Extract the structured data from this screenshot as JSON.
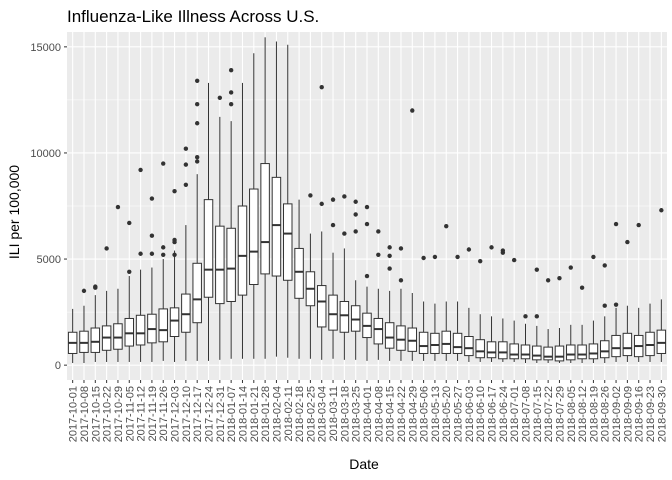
{
  "chart_data": {
    "type": "boxplot",
    "title": "Influenza-Like Illness Across U.S.",
    "xlabel": "Date",
    "ylabel": "ILI per 100,000",
    "ylim": [
      -700,
      15700
    ],
    "yticks": [
      0,
      5000,
      10000,
      15000
    ],
    "ytick_labels": [
      "0",
      "5000",
      "10000",
      "15000"
    ],
    "grid": true,
    "colors": {
      "panel": "#ebebeb",
      "grid": "#ffffff",
      "box_fill": "#ffffff",
      "box_line": "#333333"
    },
    "categories": [
      "2017-10-01",
      "2017-10-08",
      "2017-10-15",
      "2017-10-22",
      "2017-10-29",
      "2017-11-05",
      "2017-11-12",
      "2017-11-19",
      "2017-11-26",
      "2017-12-03",
      "2017-12-10",
      "2017-12-17",
      "2017-12-24",
      "2017-12-31",
      "2018-01-07",
      "2018-01-14",
      "2018-01-21",
      "2018-01-28",
      "2018-02-04",
      "2018-02-11",
      "2018-02-18",
      "2018-02-25",
      "2018-03-04",
      "2018-03-11",
      "2018-03-18",
      "2018-03-25",
      "2018-04-01",
      "2018-04-08",
      "2018-04-15",
      "2018-04-22",
      "2018-04-29",
      "2018-05-06",
      "2018-05-13",
      "2018-05-20",
      "2018-05-27",
      "2018-06-03",
      "2018-06-10",
      "2018-06-17",
      "2018-06-24",
      "2018-07-01",
      "2018-07-08",
      "2018-07-15",
      "2018-07-22",
      "2018-07-29",
      "2018-08-05",
      "2018-08-12",
      "2018-08-19",
      "2018-08-26",
      "2018-09-02",
      "2018-09-09",
      "2018-09-16",
      "2018-09-23",
      "2018-09-30"
    ],
    "boxes": [
      {
        "low": 100,
        "q1": 550,
        "median": 1050,
        "q3": 1550,
        "high": 2650,
        "outliers": []
      },
      {
        "low": 100,
        "q1": 600,
        "median": 1050,
        "q3": 1600,
        "high": 2800,
        "outliers": [
          3500
        ]
      },
      {
        "low": 150,
        "q1": 600,
        "median": 1100,
        "q3": 1750,
        "high": 3300,
        "outliers": [
          3650,
          3700
        ]
      },
      {
        "low": 150,
        "q1": 700,
        "median": 1300,
        "q3": 1850,
        "high": 3500,
        "outliers": [
          5500
        ]
      },
      {
        "low": 150,
        "q1": 750,
        "median": 1300,
        "q3": 1950,
        "high": 3600,
        "outliers": [
          7450
        ]
      },
      {
        "low": 150,
        "q1": 900,
        "median": 1500,
        "q3": 2200,
        "high": 4200,
        "outliers": [
          4400,
          6700
        ]
      },
      {
        "low": 150,
        "q1": 950,
        "median": 1500,
        "q3": 2350,
        "high": 4500,
        "outliers": [
          9200,
          5250
        ]
      },
      {
        "low": 150,
        "q1": 1050,
        "median": 1700,
        "q3": 2400,
        "high": 4600,
        "outliers": [
          7850,
          6100,
          5250
        ]
      },
      {
        "low": 200,
        "q1": 1100,
        "median": 1650,
        "q3": 2650,
        "high": 5000,
        "outliers": [
          9500,
          5550,
          5200
        ]
      },
      {
        "low": 150,
        "q1": 1350,
        "median": 2100,
        "q3": 2700,
        "high": 5400,
        "outliers": [
          8200,
          5900,
          5800,
          5200
        ]
      },
      {
        "low": 200,
        "q1": 1550,
        "median": 2400,
        "q3": 3350,
        "high": 6600,
        "outliers": [
          10200,
          9450,
          8500
        ]
      },
      {
        "low": 200,
        "q1": 2000,
        "median": 3100,
        "q3": 4800,
        "high": 9000,
        "outliers": [
          13400,
          12300,
          11400,
          9800,
          9600
        ]
      },
      {
        "low": 200,
        "q1": 3200,
        "median": 4500,
        "q3": 7800,
        "high": 13300,
        "outliers": []
      },
      {
        "low": 250,
        "q1": 2900,
        "median": 4500,
        "q3": 6550,
        "high": 11700,
        "outliers": [
          12600
        ]
      },
      {
        "low": 300,
        "q1": 3000,
        "median": 4550,
        "q3": 6450,
        "high": 11500,
        "outliers": [
          13900,
          12850,
          12300
        ]
      },
      {
        "low": 300,
        "q1": 3300,
        "median": 5150,
        "q3": 7500,
        "high": 13300,
        "outliers": []
      },
      {
        "low": 300,
        "q1": 3800,
        "median": 5350,
        "q3": 8300,
        "high": 14700,
        "outliers": []
      },
      {
        "low": 300,
        "q1": 4300,
        "median": 5800,
        "q3": 9500,
        "high": 15450,
        "outliers": []
      },
      {
        "low": 400,
        "q1": 4200,
        "median": 6600,
        "q3": 8850,
        "high": 15250,
        "outliers": []
      },
      {
        "low": 350,
        "q1": 4000,
        "median": 6200,
        "q3": 7600,
        "high": 15100,
        "outliers": []
      },
      {
        "low": 300,
        "q1": 3150,
        "median": 4400,
        "q3": 5500,
        "high": 7800,
        "outliers": []
      },
      {
        "low": 300,
        "q1": 2800,
        "median": 3600,
        "q3": 4400,
        "high": 6200,
        "outliers": [
          8000
        ]
      },
      {
        "low": 250,
        "q1": 1800,
        "median": 3000,
        "q3": 3750,
        "high": 6300,
        "outliers": [
          13100,
          7600
        ]
      },
      {
        "low": 300,
        "q1": 1650,
        "median": 2400,
        "q3": 3300,
        "high": 5300,
        "outliers": [
          7800,
          6600
        ]
      },
      {
        "low": 250,
        "q1": 1550,
        "median": 2350,
        "q3": 3000,
        "high": 5500,
        "outliers": [
          7950,
          6200
        ]
      },
      {
        "low": 250,
        "q1": 1600,
        "median": 2150,
        "q3": 2800,
        "high": 4000,
        "outliers": [
          7700,
          7100,
          6300
        ]
      },
      {
        "low": 200,
        "q1": 1300,
        "median": 1850,
        "q3": 2450,
        "high": 3700,
        "outliers": [
          7450,
          6650,
          4200
        ]
      },
      {
        "low": 250,
        "q1": 1000,
        "median": 1700,
        "q3": 2200,
        "high": 3600,
        "outliers": [
          6300,
          5200
        ]
      },
      {
        "low": 200,
        "q1": 800,
        "median": 1300,
        "q3": 2000,
        "high": 3500,
        "outliers": [
          5550,
          5150,
          4550
        ]
      },
      {
        "low": 200,
        "q1": 700,
        "median": 1200,
        "q3": 1850,
        "high": 3600,
        "outliers": [
          5500,
          4000
        ]
      },
      {
        "low": 200,
        "q1": 650,
        "median": 1150,
        "q3": 1750,
        "high": 3400,
        "outliers": [
          12000
        ]
      },
      {
        "low": 200,
        "q1": 550,
        "median": 900,
        "q3": 1550,
        "high": 3000,
        "outliers": [
          5050
        ]
      },
      {
        "low": 200,
        "q1": 550,
        "median": 950,
        "q3": 1500,
        "high": 2900,
        "outliers": [
          5100
        ]
      },
      {
        "low": 200,
        "q1": 550,
        "median": 1000,
        "q3": 1600,
        "high": 3000,
        "outliers": [
          6550
        ]
      },
      {
        "low": 200,
        "q1": 550,
        "median": 850,
        "q3": 1500,
        "high": 3000,
        "outliers": [
          5100
        ]
      },
      {
        "low": 150,
        "q1": 450,
        "median": 800,
        "q3": 1350,
        "high": 2700,
        "outliers": [
          5450
        ]
      },
      {
        "low": 150,
        "q1": 350,
        "median": 650,
        "q3": 1200,
        "high": 2400,
        "outliers": [
          4900
        ]
      },
      {
        "low": 150,
        "q1": 350,
        "median": 600,
        "q3": 1100,
        "high": 2300,
        "outliers": [
          5550
        ]
      },
      {
        "low": 150,
        "q1": 300,
        "median": 600,
        "q3": 1100,
        "high": 2200,
        "outliers": [
          5400,
          5300
        ]
      },
      {
        "low": 150,
        "q1": 300,
        "median": 500,
        "q3": 1000,
        "high": 2100,
        "outliers": [
          4950
        ]
      },
      {
        "low": 100,
        "q1": 300,
        "median": 500,
        "q3": 950,
        "high": 1950,
        "outliers": [
          2300
        ]
      },
      {
        "low": 100,
        "q1": 250,
        "median": 450,
        "q3": 900,
        "high": 1850,
        "outliers": [
          4500,
          2300
        ]
      },
      {
        "low": 100,
        "q1": 250,
        "median": 400,
        "q3": 850,
        "high": 1700,
        "outliers": [
          4000
        ]
      },
      {
        "low": 100,
        "q1": 200,
        "median": 400,
        "q3": 900,
        "high": 1750,
        "outliers": [
          4100
        ]
      },
      {
        "low": 100,
        "q1": 250,
        "median": 500,
        "q3": 950,
        "high": 1900,
        "outliers": [
          4600
        ]
      },
      {
        "low": 100,
        "q1": 300,
        "median": 500,
        "q3": 950,
        "high": 1900,
        "outliers": [
          3650
        ]
      },
      {
        "low": 100,
        "q1": 300,
        "median": 550,
        "q3": 1000,
        "high": 2100,
        "outliers": [
          5100
        ]
      },
      {
        "low": 100,
        "q1": 350,
        "median": 650,
        "q3": 1150,
        "high": 2300,
        "outliers": [
          4700,
          2800
        ]
      },
      {
        "low": 150,
        "q1": 400,
        "median": 800,
        "q3": 1400,
        "high": 2700,
        "outliers": [
          6650,
          2850
        ]
      },
      {
        "low": 150,
        "q1": 450,
        "median": 800,
        "q3": 1500,
        "high": 2800,
        "outliers": [
          5800
        ]
      },
      {
        "low": 150,
        "q1": 400,
        "median": 900,
        "q3": 1400,
        "high": 2700,
        "outliers": [
          6600
        ]
      },
      {
        "low": 150,
        "q1": 450,
        "median": 950,
        "q3": 1550,
        "high": 2900,
        "outliers": []
      },
      {
        "low": 150,
        "q1": 550,
        "median": 1050,
        "q3": 1650,
        "high": 3100,
        "outliers": [
          7300
        ]
      }
    ]
  }
}
